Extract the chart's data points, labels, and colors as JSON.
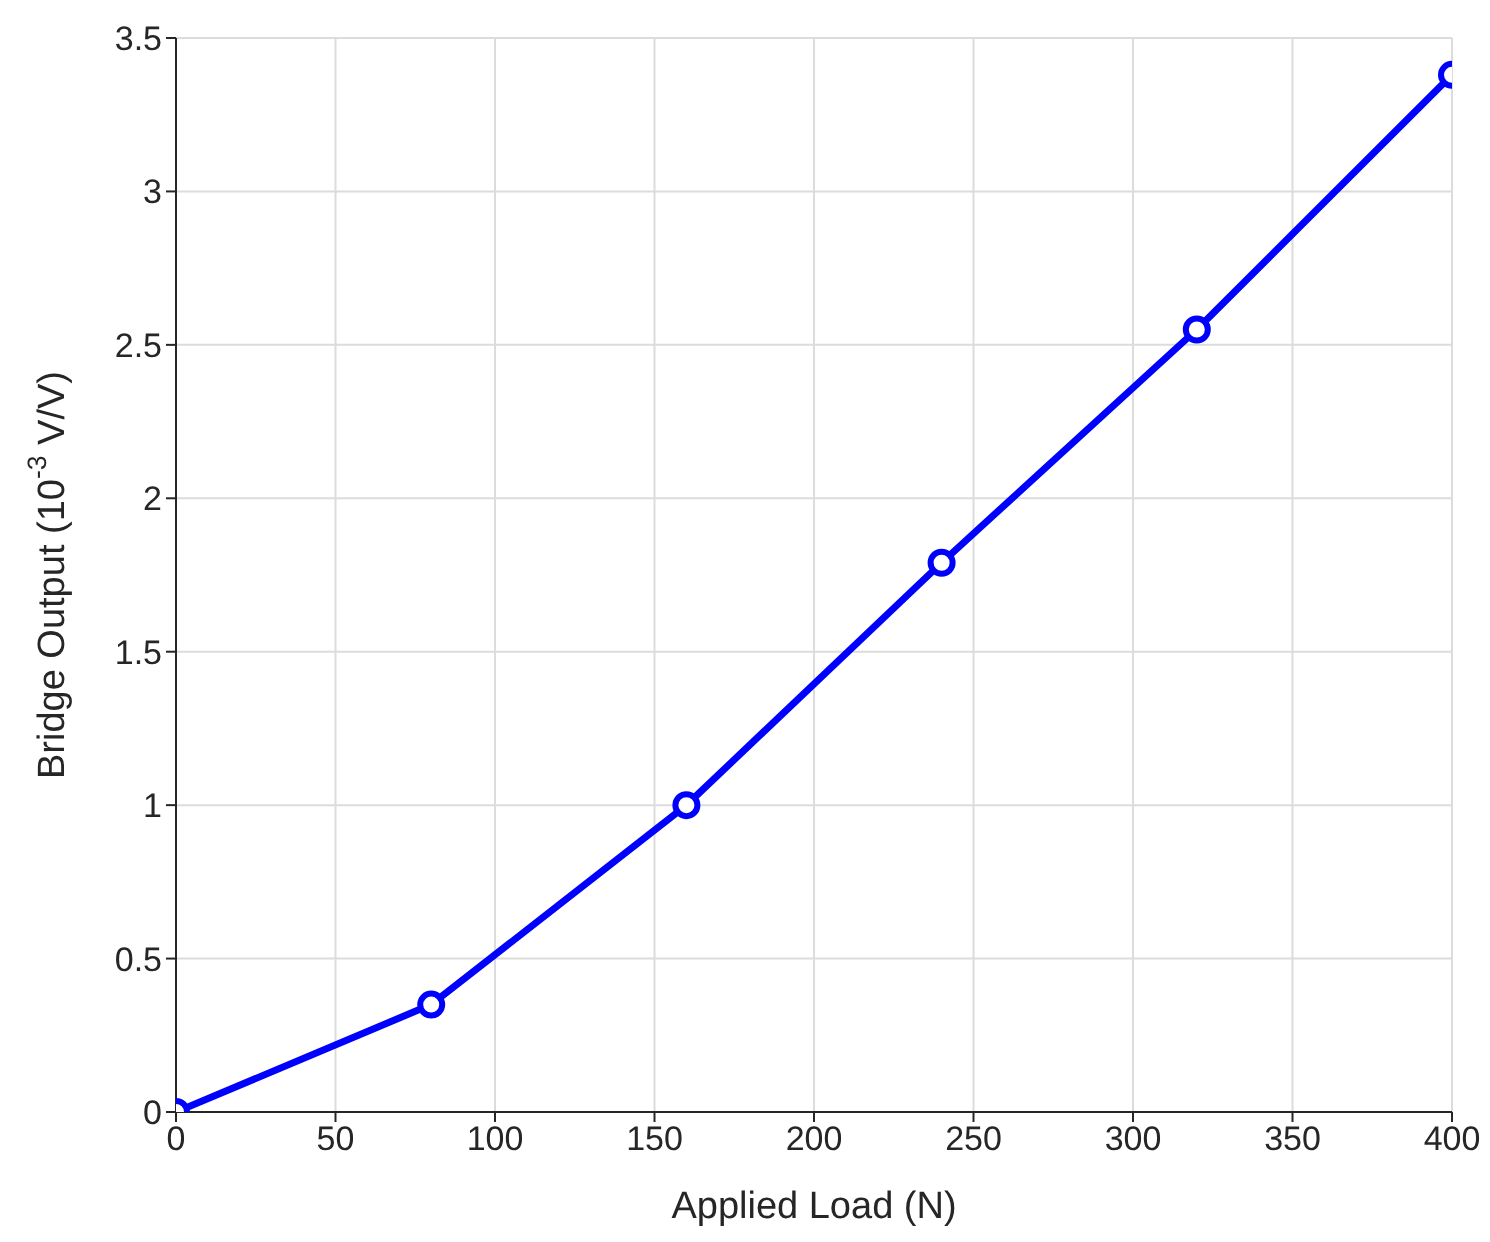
{
  "chart_data": {
    "type": "line",
    "xlabel": "Applied Load (N)",
    "ylabel": "Bridge Output (10$^{-3}$ V/V)",
    "x": [
      0,
      80,
      160,
      240,
      320,
      400
    ],
    "series": [
      {
        "color": "#0000ff",
        "values": [
          0,
          0.35,
          1.0,
          1.79,
          2.55,
          3.38
        ]
      }
    ],
    "xlim": [
      0,
      400
    ],
    "xticks": [
      0,
      50,
      100,
      150,
      200,
      250,
      300,
      350,
      400
    ],
    "ylim": [
      0,
      3.5
    ],
    "yticks": [
      0,
      0.5,
      1,
      1.5,
      2,
      2.5,
      3,
      3.5
    ],
    "grid": true,
    "marker": "circle",
    "line_style": "solid"
  }
}
